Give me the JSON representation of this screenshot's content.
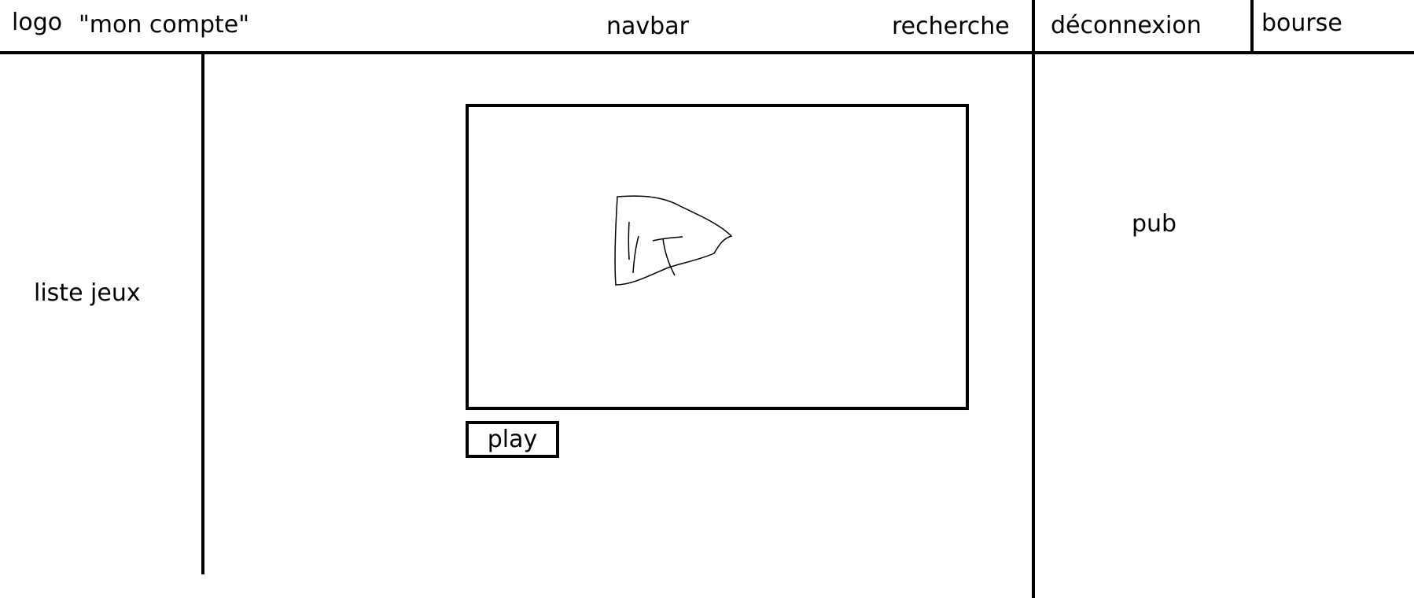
{
  "header": {
    "logo": "logo",
    "account": "\"mon compte\"",
    "navbar": "navbar",
    "search": "recherche",
    "logout": "déconnexion",
    "wallet": "bourse"
  },
  "sidebar": {
    "games_list": "liste jeux"
  },
  "main": {
    "play_label": "play",
    "preview_icon": "hand-drawn-sketch"
  },
  "right_panel": {
    "ad": "pub"
  }
}
